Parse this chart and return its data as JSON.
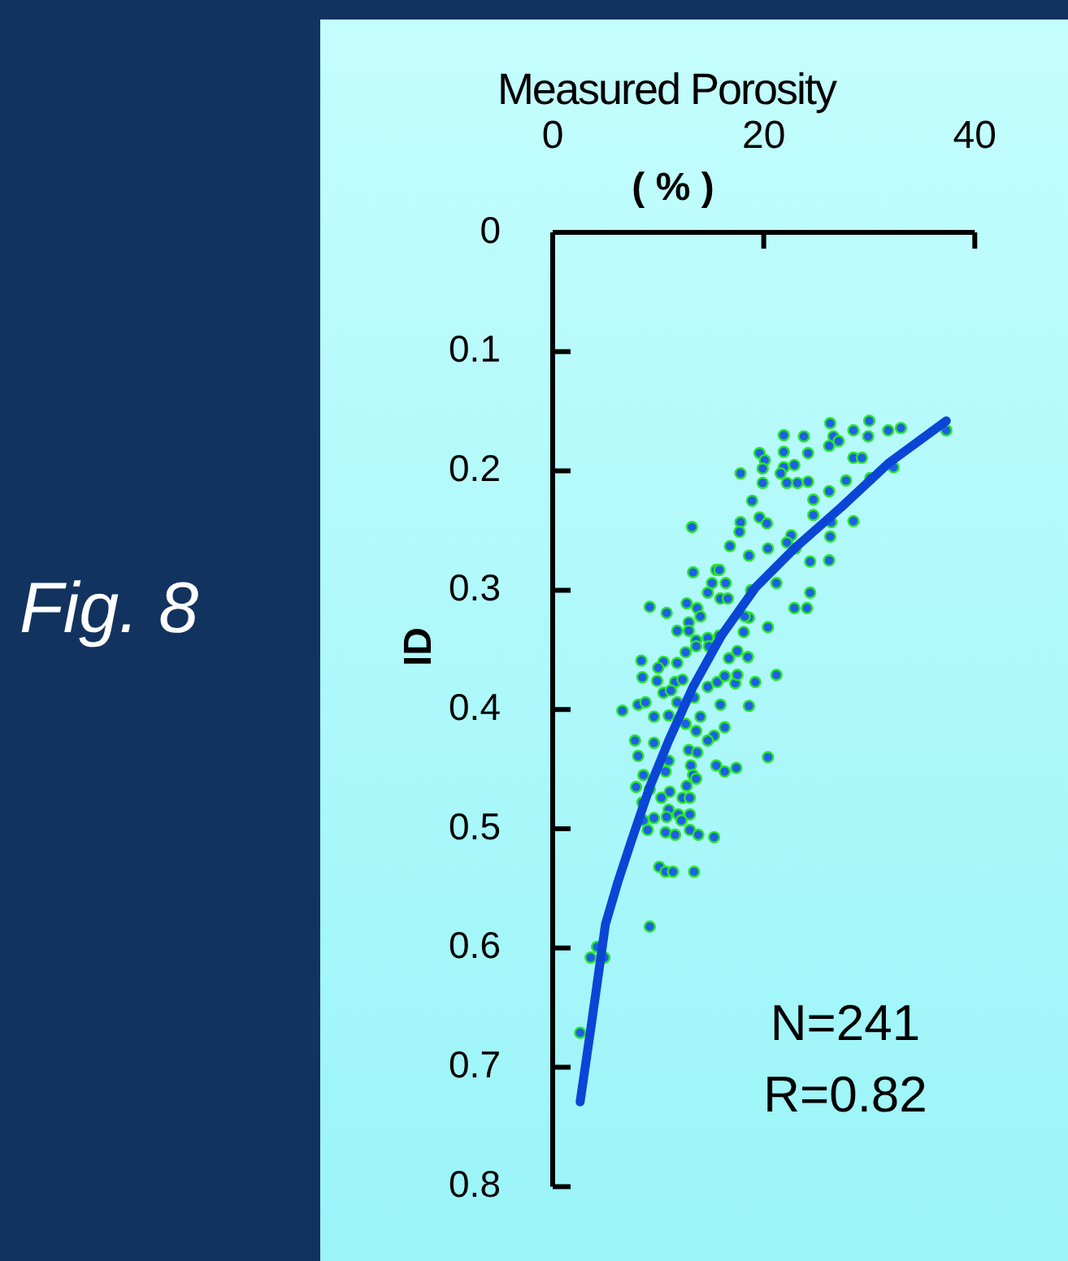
{
  "chart_data": {
    "type": "scatter",
    "title": "Fig. 8",
    "xlabel": "Measured Porosity",
    "ylabel": "ID",
    "annotations": [
      "( % )",
      "N=241",
      "R=0.82"
    ],
    "xlim": [
      0,
      40
    ],
    "xticks": [
      0,
      20,
      40
    ],
    "ylim": [
      0.8,
      0
    ],
    "yticks": [
      0,
      0.1,
      0.2,
      0.3,
      0.4,
      0.5,
      0.6,
      0.7,
      0.8
    ],
    "grid": false,
    "legend": false,
    "marker": "circle",
    "series": [
      {
        "color": "#1f5fe6",
        "x": [
          26.3,
          30.0,
          21.9,
          23.8,
          28.5,
          31.8,
          33.0,
          29.9,
          26.6,
          27.1,
          26.2,
          19.6,
          21.9,
          24.2,
          20.1,
          28.5,
          29.3,
          37.3,
          32.3,
          17.8,
          19.9,
          22.9,
          21.9,
          27.8,
          30.1,
          22.2,
          23.2,
          24.2,
          19.9,
          21.6,
          26.2,
          18.9,
          24.7,
          19.6,
          24.7,
          17.8,
          20.3,
          17.7,
          26.4,
          28.5,
          26.3,
          22.6,
          16.8,
          20.4,
          18.6,
          22.2,
          23.0,
          24.4,
          26.2,
          15.5,
          15.1,
          16.4,
          14.7,
          18.8,
          21.2,
          24.4,
          15.9,
          22.9,
          24.1,
          18.6,
          20.4,
          13.2,
          13.3,
          15.8,
          9.2,
          10.8,
          12.7,
          13.7,
          12.9,
          14.0,
          16.6,
          18.2,
          11.8,
          12.9,
          13.6,
          14.7,
          15.8,
          18.1,
          8.4,
          10.5,
          11.8,
          10.0,
          12.6,
          13.6,
          14.8,
          16.7,
          18.5,
          17.5,
          8.5,
          9.9,
          11.6,
          12.3,
          10.5,
          11.2,
          14.7,
          15.6,
          16.3,
          17.3,
          17.5,
          19.2,
          21.2,
          13.4,
          15.9,
          18.6,
          6.6,
          8.1,
          8.8,
          9.6,
          11.0,
          11.8,
          12.6,
          14.0,
          13.6,
          16.3,
          15.3,
          7.8,
          9.6,
          14.7,
          12.9,
          13.7,
          8.1,
          11.0,
          13.1,
          15.5,
          16.3,
          17.4,
          20.4,
          8.6,
          10.7,
          13.3,
          13.6,
          7.9,
          9.2,
          11.1,
          12.7,
          10.3,
          12.3,
          13.0,
          8.5,
          11.0,
          10.8,
          11.9,
          13.0,
          12.2,
          9.6,
          8.6,
          9.0,
          10.7,
          11.6,
          13.0,
          13.8,
          15.3,
          10.1,
          10.7,
          11.4,
          13.4,
          9.2,
          3.6,
          4.2,
          4.9,
          2.6
        ],
        "values": [
          0.16,
          0.158,
          0.17,
          0.171,
          0.166,
          0.166,
          0.164,
          0.171,
          0.171,
          0.175,
          0.179,
          0.185,
          0.184,
          0.185,
          0.191,
          0.189,
          0.189,
          0.166,
          0.197,
          0.202,
          0.198,
          0.195,
          0.197,
          0.208,
          0.206,
          0.21,
          0.21,
          0.209,
          0.21,
          0.202,
          0.217,
          0.225,
          0.224,
          0.239,
          0.237,
          0.243,
          0.244,
          0.251,
          0.243,
          0.242,
          0.255,
          0.254,
          0.263,
          0.265,
          0.271,
          0.26,
          0.265,
          0.276,
          0.275,
          0.283,
          0.294,
          0.294,
          0.302,
          0.3,
          0.294,
          0.302,
          0.307,
          0.315,
          0.315,
          0.323,
          0.331,
          0.247,
          0.285,
          0.283,
          0.314,
          0.319,
          0.311,
          0.315,
          0.327,
          0.322,
          0.307,
          0.322,
          0.334,
          0.334,
          0.342,
          0.34,
          0.338,
          0.335,
          0.359,
          0.36,
          0.361,
          0.365,
          0.352,
          0.347,
          0.347,
          0.357,
          0.356,
          0.351,
          0.373,
          0.376,
          0.377,
          0.375,
          0.386,
          0.384,
          0.381,
          0.377,
          0.372,
          0.378,
          0.371,
          0.377,
          0.371,
          0.39,
          0.396,
          0.397,
          0.401,
          0.396,
          0.394,
          0.406,
          0.405,
          0.394,
          0.412,
          0.406,
          0.418,
          0.415,
          0.422,
          0.426,
          0.428,
          0.426,
          0.434,
          0.436,
          0.439,
          0.443,
          0.447,
          0.447,
          0.452,
          0.449,
          0.44,
          0.455,
          0.452,
          0.455,
          0.458,
          0.465,
          0.467,
          0.469,
          0.464,
          0.474,
          0.474,
          0.474,
          0.478,
          0.484,
          0.49,
          0.488,
          0.488,
          0.493,
          0.491,
          0.493,
          0.501,
          0.503,
          0.505,
          0.501,
          0.505,
          0.507,
          0.532,
          0.536,
          0.536,
          0.536,
          0.582,
          0.608,
          0.599,
          0.608,
          0.671
        ]
      },
      {
        "type": "line",
        "color": "#0b45d6",
        "marker": "none",
        "x": [
          2.6,
          3.7,
          5.0,
          6.2,
          7.5,
          9.2,
          11.0,
          13.3,
          16.0,
          19.2,
          22.9,
          27.4,
          31.9,
          37.3
        ],
        "values": [
          0.729,
          0.662,
          0.58,
          0.544,
          0.509,
          0.465,
          0.426,
          0.381,
          0.338,
          0.298,
          0.265,
          0.23,
          0.193,
          0.158
        ]
      }
    ]
  }
}
